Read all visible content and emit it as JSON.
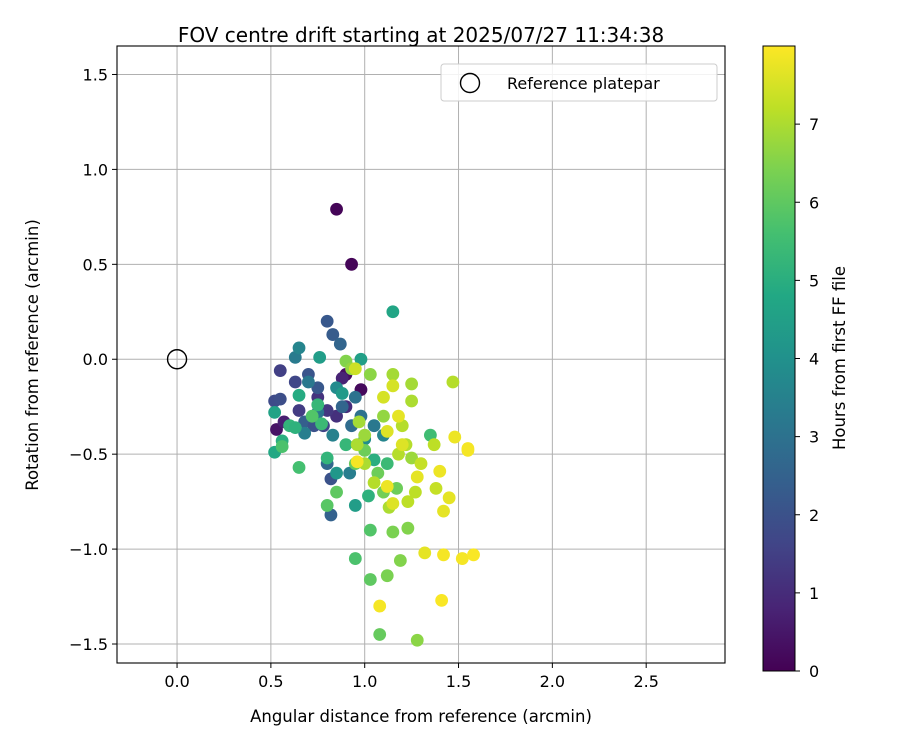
{
  "chart_data": {
    "type": "scatter",
    "title": "FOV centre drift starting at 2025/07/27 11:34:38",
    "xlabel": "Angular distance from reference (arcmin)",
    "ylabel": "Rotation from reference (arcmin)",
    "xlim": [
      -0.32,
      2.92
    ],
    "ylim": [
      -1.6,
      1.65
    ],
    "xticks": [
      "0.0",
      "0.5",
      "1.0",
      "1.5",
      "2.0",
      "2.5"
    ],
    "yticks": [
      "1.5",
      "1.0",
      "0.5",
      "0.0",
      "−0.5",
      "−1.0",
      "−1.5"
    ],
    "grid": true,
    "legend": {
      "placement": "top-right",
      "entries": [
        {
          "label": "Reference platepar",
          "marker": "open-circle",
          "x": 0.0,
          "y": 0.0
        }
      ]
    },
    "colorbar": {
      "label": "Hours from first FF file",
      "range": [
        0,
        8
      ],
      "ticks": [
        "0",
        "1",
        "2",
        "3",
        "4",
        "5",
        "6",
        "7"
      ],
      "colormap": "viridis"
    },
    "points": [
      [
        0.85,
        0.79,
        0.1
      ],
      [
        0.93,
        0.5,
        0.1
      ],
      [
        0.9,
        -0.08,
        0.3
      ],
      [
        0.98,
        -0.16,
        0.2
      ],
      [
        0.53,
        -0.37,
        0.4
      ],
      [
        0.57,
        -0.33,
        0.7
      ],
      [
        0.88,
        -0.1,
        0.8
      ],
      [
        0.85,
        -0.3,
        1.1
      ],
      [
        0.9,
        -0.25,
        1.0
      ],
      [
        0.8,
        -0.27,
        1.3
      ],
      [
        0.55,
        -0.06,
        1.5
      ],
      [
        0.52,
        -0.22,
        1.8
      ],
      [
        0.55,
        -0.21,
        1.9
      ],
      [
        0.63,
        -0.12,
        1.7
      ],
      [
        0.65,
        -0.27,
        1.4
      ],
      [
        0.75,
        -0.2,
        1.2
      ],
      [
        0.78,
        -0.35,
        1.6
      ],
      [
        0.7,
        -0.08,
        2.1
      ],
      [
        0.75,
        -0.15,
        2.2
      ],
      [
        0.68,
        -0.33,
        2.4
      ],
      [
        0.73,
        -0.35,
        2.0
      ],
      [
        0.8,
        0.2,
        2.2
      ],
      [
        0.83,
        0.13,
        2.3
      ],
      [
        0.87,
        0.08,
        2.6
      ],
      [
        0.82,
        -0.63,
        2.0
      ],
      [
        0.82,
        -0.82,
        2.5
      ],
      [
        0.8,
        -0.55,
        2.7
      ],
      [
        0.88,
        -0.25,
        2.6
      ],
      [
        0.93,
        -0.35,
        2.8
      ],
      [
        0.95,
        -0.2,
        3.0
      ],
      [
        0.63,
        0.01,
        3.3
      ],
      [
        0.65,
        0.06,
        3.6
      ],
      [
        0.7,
        -0.12,
        3.2
      ],
      [
        0.68,
        -0.39,
        3.4
      ],
      [
        0.75,
        -0.28,
        3.1
      ],
      [
        0.83,
        -0.4,
        3.5
      ],
      [
        0.85,
        -0.15,
        3.8
      ],
      [
        0.92,
        -0.6,
        3.4
      ],
      [
        0.98,
        -0.3,
        3.0
      ],
      [
        1.05,
        -0.35,
        3.2
      ],
      [
        1.1,
        -0.4,
        3.6
      ],
      [
        1.0,
        -0.42,
        3.9
      ],
      [
        0.76,
        0.01,
        4.4
      ],
      [
        0.85,
        -0.6,
        4.2
      ],
      [
        0.88,
        -0.18,
        4.3
      ],
      [
        0.98,
        0.0,
        4.5
      ],
      [
        1.15,
        0.25,
        4.7
      ],
      [
        0.95,
        -0.77,
        4.4
      ],
      [
        0.52,
        -0.28,
        4.6
      ],
      [
        0.52,
        -0.49,
        4.8
      ],
      [
        0.56,
        -0.43,
        5.0
      ],
      [
        0.6,
        -0.35,
        5.2
      ],
      [
        0.65,
        -0.19,
        4.9
      ],
      [
        0.63,
        -0.36,
        5.1
      ],
      [
        0.75,
        -0.24,
        5.3
      ],
      [
        0.77,
        -0.34,
        5.4
      ],
      [
        0.8,
        -0.52,
        5.2
      ],
      [
        0.9,
        -0.45,
        5.3
      ],
      [
        1.05,
        -0.53,
        5.0
      ],
      [
        1.02,
        -0.72,
        5.1
      ],
      [
        1.35,
        -0.4,
        5.5
      ],
      [
        1.12,
        -0.55,
        5.4
      ],
      [
        0.56,
        -0.46,
        5.7
      ],
      [
        0.65,
        -0.57,
        5.6
      ],
      [
        0.72,
        -0.3,
        5.8
      ],
      [
        0.8,
        -0.77,
        5.9
      ],
      [
        0.85,
        -0.7,
        6.0
      ],
      [
        0.95,
        -1.05,
        5.7
      ],
      [
        1.03,
        -0.9,
        5.8
      ],
      [
        1.03,
        -1.16,
        6.0
      ],
      [
        1.08,
        -1.45,
        6.1
      ],
      [
        0.95,
        -0.55,
        6.1
      ],
      [
        1.0,
        -0.48,
        6.2
      ],
      [
        1.07,
        -0.6,
        6.2
      ],
      [
        1.1,
        -0.7,
        6.3
      ],
      [
        1.17,
        -0.68,
        6.2
      ],
      [
        1.15,
        -0.91,
        6.4
      ],
      [
        1.12,
        -1.14,
        6.4
      ],
      [
        1.19,
        -1.06,
        6.5
      ],
      [
        1.23,
        -0.89,
        6.5
      ],
      [
        1.28,
        -1.48,
        6.6
      ],
      [
        0.9,
        -0.01,
        6.5
      ],
      [
        0.93,
        -0.05,
        6.7
      ],
      [
        1.03,
        -0.08,
        6.6
      ],
      [
        1.1,
        -0.3,
        6.7
      ],
      [
        0.97,
        -0.33,
        6.9
      ],
      [
        1.0,
        -0.4,
        6.8
      ],
      [
        0.96,
        -0.45,
        7.0
      ],
      [
        1.0,
        -0.55,
        7.0
      ],
      [
        1.05,
        -0.65,
        7.1
      ],
      [
        1.13,
        -0.78,
        7.0
      ],
      [
        1.18,
        -0.5,
        7.1
      ],
      [
        1.22,
        -0.45,
        7.1
      ],
      [
        1.15,
        -0.08,
        6.9
      ],
      [
        1.25,
        -0.13,
        6.9
      ],
      [
        1.25,
        -0.22,
        7.0
      ],
      [
        1.2,
        -0.35,
        7.1
      ],
      [
        1.25,
        -0.52,
        6.8
      ],
      [
        1.23,
        -0.75,
        7.2
      ],
      [
        1.27,
        -0.7,
        7.2
      ],
      [
        1.3,
        -0.55,
        7.3
      ],
      [
        1.37,
        -0.45,
        7.2
      ],
      [
        1.38,
        -0.68,
        7.3
      ],
      [
        1.47,
        -0.12,
        7.1
      ],
      [
        0.95,
        -0.05,
        7.4
      ],
      [
        1.1,
        -0.2,
        7.5
      ],
      [
        1.15,
        -0.14,
        7.5
      ],
      [
        1.12,
        -0.38,
        7.6
      ],
      [
        1.18,
        -0.3,
        7.7
      ],
      [
        1.2,
        -0.45,
        7.6
      ],
      [
        1.28,
        -0.62,
        7.7
      ],
      [
        1.12,
        -0.67,
        7.8
      ],
      [
        1.15,
        -0.76,
        7.6
      ],
      [
        1.32,
        -1.02,
        7.7
      ],
      [
        1.4,
        -0.59,
        7.8
      ],
      [
        1.42,
        -0.8,
        7.7
      ],
      [
        1.45,
        -0.73,
        7.7
      ],
      [
        1.48,
        -0.41,
        7.8
      ],
      [
        1.55,
        -0.48,
        7.9
      ],
      [
        1.55,
        -0.47,
        7.9
      ],
      [
        1.42,
        -1.03,
        7.9
      ],
      [
        1.52,
        -1.05,
        7.9
      ],
      [
        1.58,
        -1.03,
        7.95
      ],
      [
        1.08,
        -1.3,
        7.9
      ],
      [
        1.41,
        -1.27,
        7.95
      ],
      [
        0.96,
        -0.54,
        7.9
      ]
    ]
  }
}
